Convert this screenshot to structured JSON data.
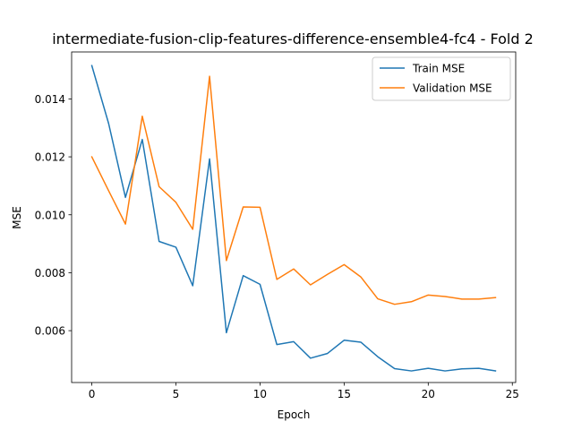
{
  "chart_data": {
    "type": "line",
    "title": "intermediate-fusion-clip-features-difference-ensemble4-fc4 - Fold 2",
    "xlabel": "Epoch",
    "ylabel": "MSE",
    "xlim": [
      -1.2,
      25.2
    ],
    "ylim": [
      0.00421,
      0.01562
    ],
    "xticks": [
      0,
      5,
      10,
      15,
      20,
      25
    ],
    "xtick_labels": [
      "0",
      "5",
      "10",
      "15",
      "20",
      "25"
    ],
    "yticks": [
      0.006,
      0.008,
      0.01,
      0.012,
      0.014
    ],
    "ytick_labels": [
      "0.006",
      "0.008",
      "0.010",
      "0.012",
      "0.014"
    ],
    "grid": false,
    "legend_position": "top-right",
    "x": [
      0,
      1,
      2,
      3,
      4,
      5,
      6,
      7,
      8,
      9,
      10,
      11,
      12,
      13,
      14,
      15,
      16,
      17,
      18,
      19,
      20,
      21,
      22,
      23,
      24
    ],
    "series": [
      {
        "name": "Train MSE",
        "color": "#1f77b4",
        "values": [
          0.01515,
          0.01315,
          0.0106,
          0.0126,
          0.00908,
          0.00888,
          0.00755,
          0.01193,
          0.00593,
          0.0079,
          0.0076,
          0.00552,
          0.00562,
          0.00505,
          0.00521,
          0.00567,
          0.0056,
          0.0051,
          0.00469,
          0.00461,
          0.0047,
          0.00461,
          0.00468,
          0.0047,
          0.00461
        ]
      },
      {
        "name": "Validation MSE",
        "color": "#ff7f0e",
        "values": [
          0.012,
          0.01083,
          0.00968,
          0.0134,
          0.01097,
          0.01043,
          0.0095,
          0.01478,
          0.00842,
          0.01027,
          0.01026,
          0.00777,
          0.00813,
          0.00758,
          0.00794,
          0.00828,
          0.00785,
          0.0071,
          0.00691,
          0.007,
          0.00723,
          0.00718,
          0.00709,
          0.00709,
          0.00714
        ]
      }
    ]
  }
}
